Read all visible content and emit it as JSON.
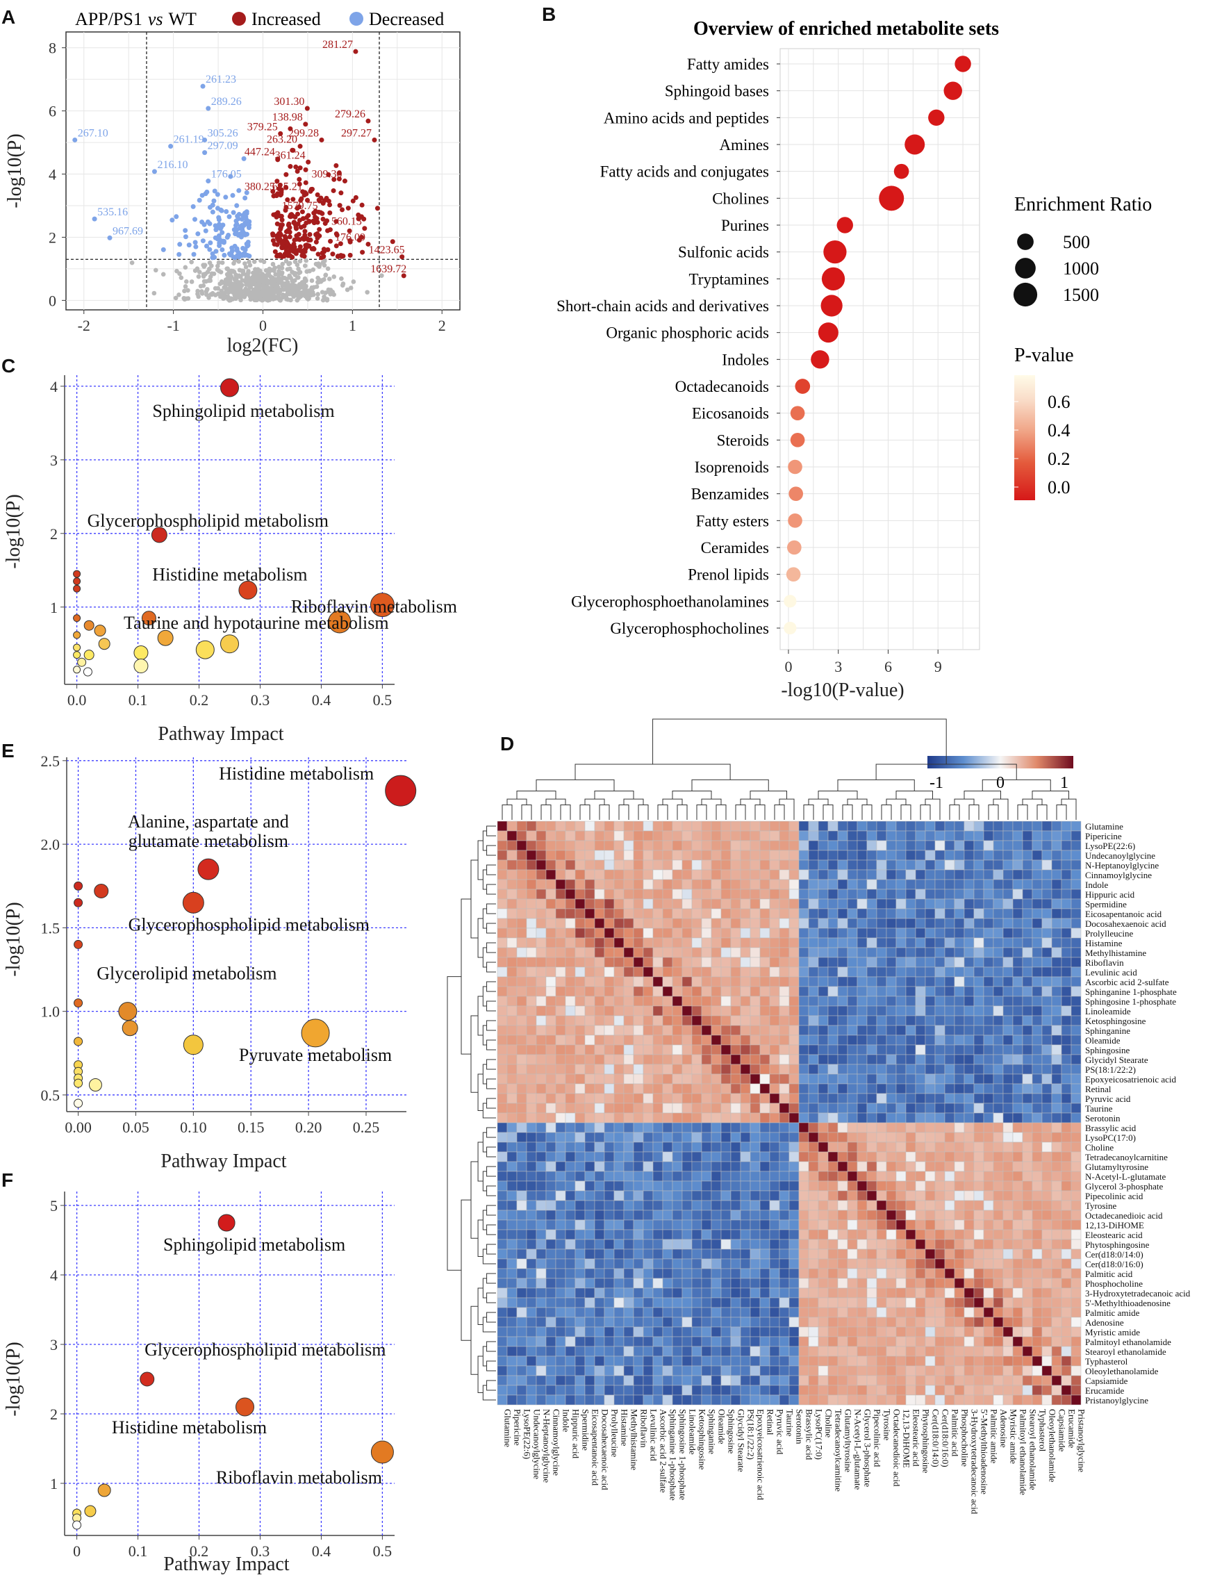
{
  "panels": {
    "a": "A",
    "b": "B",
    "c": "C",
    "d": "D",
    "e": "E",
    "f": "F"
  },
  "colors": {
    "increased": "#a51c1c",
    "decreased": "#7ea4e8",
    "ns": "#b8b8b8",
    "grid": "#3c3cff"
  },
  "volcano": {
    "title_main": "APP/PS1",
    "title_vs": "vs",
    "title_ref": "WT",
    "legend_increased": "Increased",
    "legend_decreased": "Decreased",
    "xlabel": "log2(FC)",
    "ylabel": "-log10(P)",
    "xticks": [
      "-2",
      "-1",
      "0",
      "1",
      "2"
    ],
    "yticks": [
      "0",
      "2",
      "4",
      "6",
      "8"
    ],
    "labels_up": [
      {
        "t": "281.27",
        "x": 1.02,
        "y": 8.1
      },
      {
        "t": "301.30",
        "x": 0.48,
        "y": 6.3
      },
      {
        "t": "279.26",
        "x": 1.16,
        "y": 5.9
      },
      {
        "t": "138.98",
        "x": 0.46,
        "y": 5.8
      },
      {
        "t": "379.25",
        "x": 0.18,
        "y": 5.5
      },
      {
        "t": "299.28",
        "x": 0.64,
        "y": 5.3
      },
      {
        "t": "297.27",
        "x": 1.23,
        "y": 5.3
      },
      {
        "t": "263.20",
        "x": 0.4,
        "y": 5.1
      },
      {
        "t": "447.24",
        "x": 0.15,
        "y": 4.7
      },
      {
        "t": "361.24",
        "x": 0.49,
        "y": 4.6
      },
      {
        "t": "309.30",
        "x": 0.9,
        "y": 4.0
      },
      {
        "t": "380.25",
        "x": 0.15,
        "y": 3.6
      },
      {
        "t": "625.21",
        "x": 0.46,
        "y": 3.6
      },
      {
        "t": "1579.75",
        "x": 0.63,
        "y": 3.0
      },
      {
        "t": "560.13",
        "x": 1.12,
        "y": 2.5
      },
      {
        "t": "176.09",
        "x": 1.16,
        "y": 2.0
      },
      {
        "t": "1423.65",
        "x": 1.6,
        "y": 1.6
      },
      {
        "t": "1639.72",
        "x": 1.62,
        "y": 1.0
      }
    ],
    "labels_down": [
      {
        "t": "261.23",
        "x": -0.64,
        "y": 7.0
      },
      {
        "t": "289.26",
        "x": -0.58,
        "y": 6.3
      },
      {
        "t": "267.10",
        "x": -2.07,
        "y": 5.3
      },
      {
        "t": "305.26",
        "x": -0.62,
        "y": 5.3
      },
      {
        "t": "261.19",
        "x": -1.0,
        "y": 5.1
      },
      {
        "t": "297.09",
        "x": -0.62,
        "y": 4.9
      },
      {
        "t": "216.10",
        "x": -1.18,
        "y": 4.3
      },
      {
        "t": "176.05",
        "x": -0.58,
        "y": 4.0
      },
      {
        "t": "535.16",
        "x": -1.85,
        "y": 2.8
      },
      {
        "t": "967.69",
        "x": -1.68,
        "y": 2.2
      }
    ]
  },
  "chart_data": [
    {
      "type": "scatter",
      "panel": "A",
      "title": "APP/PS1 vs WT",
      "xlabel": "log2(FC)",
      "ylabel": "-log10(P)",
      "xlim": [
        -2.2,
        2.2
      ],
      "ylim": [
        -0.3,
        8.5
      ],
      "thresholds": {
        "log2fc": [
          -1.3,
          1.3
        ],
        "neglog10p": 1.3
      },
      "series": [
        {
          "name": "Increased"
        },
        {
          "name": "Decreased"
        }
      ]
    },
    {
      "type": "scatter",
      "panel": "B",
      "title": "Overview of enriched metabolite sets",
      "xlabel": "-log10(P-value)",
      "xticks": [
        "0",
        "3",
        "6",
        "9"
      ],
      "xlim": [
        -0.5,
        11.5
      ],
      "size_legend_title": "Enrichment Ratio",
      "size_legend": [
        "500",
        "1000",
        "1500"
      ],
      "color_legend_title": "P-value",
      "color_legend": [
        "0.6",
        "0.4",
        "0.2",
        "0.0"
      ],
      "categories": [
        "Fatty amides",
        "Sphingoid bases",
        "Amino acids and peptides",
        "Amines",
        "Fatty acids and conjugates",
        "Cholines",
        "Purines",
        "Sulfonic acids",
        "Tryptamines",
        "Short-chain acids and derivatives",
        "Organic phosphoric acids",
        "Indoles",
        "Octadecanoids",
        "Eicosanoids",
        "Steroids",
        "Isoprenoids",
        "Benzamides",
        "Fatty esters",
        "Ceramides",
        "Prenol lipids",
        "Glycerophosphoethanolamines",
        "Glycerophosphocholines"
      ],
      "values": [
        10.5,
        9.9,
        8.9,
        7.6,
        6.8,
        6.2,
        3.4,
        2.8,
        2.7,
        2.6,
        2.4,
        1.9,
        0.85,
        0.55,
        0.55,
        0.4,
        0.45,
        0.4,
        0.35,
        0.3,
        0.1,
        0.1
      ],
      "enrichment_ratio": [
        400,
        600,
        400,
        800,
        300,
        1500,
        400,
        1200,
        1200,
        1000,
        800,
        600,
        300,
        250,
        250,
        250,
        250,
        250,
        250,
        250,
        150,
        150
      ],
      "p_values": [
        0.0,
        0.0,
        0.0,
        0.0,
        0.0,
        0.0,
        0.0,
        0.0,
        0.0,
        0.0,
        0.0,
        0.01,
        0.14,
        0.28,
        0.28,
        0.4,
        0.35,
        0.4,
        0.45,
        0.5,
        0.79,
        0.79
      ]
    },
    {
      "type": "scatter",
      "panel": "C",
      "xlabel": "Pathway Impact",
      "ylabel": "-log10(P)",
      "xticks": [
        "0.0",
        "0.1",
        "0.2",
        "0.3",
        "0.4",
        "0.5"
      ],
      "yticks": [
        "1",
        "2",
        "3",
        "4"
      ],
      "xlim": [
        -0.02,
        0.52
      ],
      "ylim": [
        -0.05,
        4.15
      ],
      "points": [
        {
          "x": 0.25,
          "y": 3.98,
          "s": 13,
          "c": "#cc1c1c",
          "label": "Sphingolipid metabolism"
        },
        {
          "x": 0.135,
          "y": 1.98,
          "s": 11,
          "c": "#cc2a1f",
          "label": "Glycerophospholipid metabolism"
        },
        {
          "x": 0.28,
          "y": 1.23,
          "s": 13,
          "c": "#d9431e",
          "label": "Histidine metabolism"
        },
        {
          "x": 0.5,
          "y": 1.03,
          "s": 17,
          "c": "#de5a1f",
          "label": "Riboflavin metabolism"
        },
        {
          "x": 0.43,
          "y": 0.8,
          "s": 16,
          "c": "#e27a22",
          "label": "Taurine and hypotaurine metabolism"
        },
        {
          "x": 0.0,
          "y": 1.45,
          "s": 5,
          "c": "#d13b1e"
        },
        {
          "x": 0.0,
          "y": 1.35,
          "s": 5,
          "c": "#d13b1e"
        },
        {
          "x": 0.0,
          "y": 1.25,
          "s": 5,
          "c": "#d13b1e"
        },
        {
          "x": 0.118,
          "y": 0.85,
          "s": 10,
          "c": "#e06a22"
        },
        {
          "x": 0.0,
          "y": 0.85,
          "s": 5,
          "c": "#e06a22"
        },
        {
          "x": 0.02,
          "y": 0.75,
          "s": 7,
          "c": "#e88a2e"
        },
        {
          "x": 0.038,
          "y": 0.68,
          "s": 8,
          "c": "#f0a33a"
        },
        {
          "x": 0.145,
          "y": 0.58,
          "s": 11,
          "c": "#f0a83a"
        },
        {
          "x": 0.0,
          "y": 0.62,
          "s": 5,
          "c": "#f0a83a"
        },
        {
          "x": 0.045,
          "y": 0.5,
          "s": 8,
          "c": "#f6c654"
        },
        {
          "x": 0.25,
          "y": 0.5,
          "s": 13,
          "c": "#f7cc4e"
        },
        {
          "x": 0.21,
          "y": 0.42,
          "s": 13,
          "c": "#fbdf5a"
        },
        {
          "x": 0.105,
          "y": 0.38,
          "s": 10,
          "c": "#fde963"
        },
        {
          "x": 0.0,
          "y": 0.45,
          "s": 5,
          "c": "#fbe26a"
        },
        {
          "x": 0.0,
          "y": 0.35,
          "s": 5,
          "c": "#fde963"
        },
        {
          "x": 0.02,
          "y": 0.35,
          "s": 7,
          "c": "#fde963"
        },
        {
          "x": 0.008,
          "y": 0.25,
          "s": 6,
          "c": "#fff1a0"
        },
        {
          "x": 0.0,
          "y": 0.15,
          "s": 5,
          "c": "#fff9d6"
        },
        {
          "x": 0.018,
          "y": 0.12,
          "s": 6,
          "c": "#ffffff"
        },
        {
          "x": 0.105,
          "y": 0.2,
          "s": 10,
          "c": "#fff6b0"
        }
      ]
    },
    {
      "type": "scatter",
      "panel": "E",
      "xlabel": "Pathway Impact",
      "ylabel": "-log10(P)",
      "xticks": [
        "0.00",
        "0.05",
        "0.10",
        "0.15",
        "0.20",
        "0.25"
      ],
      "yticks": [
        "0.5",
        "1.0",
        "1.5",
        "2.0",
        "2.5"
      ],
      "xlim": [
        -0.01,
        0.285
      ],
      "ylim": [
        0.4,
        2.52
      ],
      "points": [
        {
          "x": 0.28,
          "y": 2.32,
          "s": 22,
          "c": "#cc1c1c",
          "label": "Histidine metabolism"
        },
        {
          "x": 0.113,
          "y": 1.85,
          "s": 15,
          "c": "#d32a1f",
          "label": "Alanine, aspartate and glutamate metabolism"
        },
        {
          "x": 0.1,
          "y": 1.65,
          "s": 15,
          "c": "#d8401f",
          "label": "Glycerophospholipid metabolism"
        },
        {
          "x": 0.043,
          "y": 1.0,
          "s": 13,
          "c": "#e28a2a",
          "label": "Glycerolipid metabolism"
        },
        {
          "x": 0.206,
          "y": 0.87,
          "s": 20,
          "c": "#f0a630",
          "label": "Pyruvate metabolism"
        },
        {
          "x": 0.0,
          "y": 1.75,
          "s": 6,
          "c": "#cc2a1f"
        },
        {
          "x": 0.0,
          "y": 1.65,
          "s": 6,
          "c": "#cc2a1f"
        },
        {
          "x": 0.02,
          "y": 1.72,
          "s": 10,
          "c": "#d33a1f"
        },
        {
          "x": 0.0,
          "y": 1.4,
          "s": 6,
          "c": "#d6431f"
        },
        {
          "x": 0.0,
          "y": 1.05,
          "s": 6,
          "c": "#e06a22"
        },
        {
          "x": 0.045,
          "y": 0.9,
          "s": 11,
          "c": "#e79530"
        },
        {
          "x": 0.1,
          "y": 0.8,
          "s": 14,
          "c": "#f3c63e"
        },
        {
          "x": 0.0,
          "y": 0.82,
          "s": 6,
          "c": "#f2b83a"
        },
        {
          "x": 0.0,
          "y": 0.68,
          "s": 6,
          "c": "#f8d550"
        },
        {
          "x": 0.0,
          "y": 0.64,
          "s": 6,
          "c": "#fbe066"
        },
        {
          "x": 0.0,
          "y": 0.6,
          "s": 6,
          "c": "#fde76e"
        },
        {
          "x": 0.0,
          "y": 0.57,
          "s": 6,
          "c": "#fde76e"
        },
        {
          "x": 0.015,
          "y": 0.56,
          "s": 9,
          "c": "#fef2a0"
        },
        {
          "x": 0.0,
          "y": 0.45,
          "s": 6,
          "c": "#fffbe8"
        }
      ]
    },
    {
      "type": "scatter",
      "panel": "F",
      "xlabel": "Pathway Impact",
      "ylabel": "-log10(P)",
      "xticks": [
        "0",
        "0.1",
        "0.2",
        "0.3",
        "0.4",
        "0.5"
      ],
      "yticks": [
        "1",
        "2",
        "3",
        "4",
        "5"
      ],
      "xlim": [
        -0.02,
        0.52
      ],
      "ylim": [
        0.25,
        5.2
      ],
      "points": [
        {
          "x": 0.245,
          "y": 4.75,
          "s": 12,
          "c": "#d21c1c",
          "label": "Sphingolipid metabolism"
        },
        {
          "x": 0.115,
          "y": 2.5,
          "s": 10,
          "c": "#d22d1f",
          "label": "Glycerophospholipid metabolism"
        },
        {
          "x": 0.275,
          "y": 2.1,
          "s": 13,
          "c": "#db541f",
          "label": "Histidine metabolism"
        },
        {
          "x": 0.5,
          "y": 1.45,
          "s": 16,
          "c": "#e27a22",
          "label": "Riboflavin metabolism"
        },
        {
          "x": 0.045,
          "y": 0.9,
          "s": 9,
          "c": "#eea638"
        },
        {
          "x": 0.022,
          "y": 0.6,
          "s": 8,
          "c": "#f6cc4a"
        },
        {
          "x": 0.0,
          "y": 0.57,
          "s": 6,
          "c": "#fbe05a"
        },
        {
          "x": 0.0,
          "y": 0.5,
          "s": 6,
          "c": "#fff0a0"
        },
        {
          "x": 0.0,
          "y": 0.4,
          "s": 6,
          "c": "#ffffff"
        }
      ]
    },
    {
      "type": "heatmap",
      "panel": "D",
      "colorbar_ticks": [
        "-1",
        "0",
        "1"
      ],
      "row_labels": [
        "Glutamine",
        "Pipericine",
        "LysoPE(22:6)",
        "Undecanoylglycine",
        "N-Heptanoylglycine",
        "Cinnamoylglycine",
        "Indole",
        "Hippuric acid",
        "Spermidine",
        "Eicosapentanoic acid",
        "Docosahexaenoic acid",
        "Prolylleucine",
        "Histamine",
        "Methylhistamine",
        "Riboflavin",
        "Levulinic acid",
        "Ascorbic acid 2-sulfate",
        "Sphinganine 1-phosphate",
        "Sphingosine 1-phosphate",
        "Linoleamide",
        "Ketosphingosine",
        "Sphinganine",
        "Oleamide",
        "Sphingosine",
        "Glycidyl Stearate",
        "PS(18:1/22:2)",
        "Epoxyeicosatrienoic acid",
        "Retinal",
        "Pyruvic acid",
        "Taurine",
        "Serotonin",
        "Brassylic acid",
        "LysoPC(17:0)",
        "Choline",
        "Tetradecanoylcarnitine",
        "Glutamyltyrosine",
        "N-Acetyl-L-glutamate",
        "Glycerol 3-phosphate",
        "Pipecolinic acid",
        "Tyrosine",
        "Octadecanedioic acid",
        "12,13-DiHOME",
        "Eleostearic acid",
        "Phytosphingosine",
        "Cer(d18:0/14:0)",
        "Cer(d18:0/16:0)",
        "Palmitic acid",
        "Phosphocholine",
        "3-Hydroxytetradecanoic acid",
        "5'-Methylthioadenosine",
        "Palmitic amide",
        "Adenosine",
        "Myristic amide",
        "Palmitoyl ethanolamide",
        "Stearoyl ethanolamide",
        "Typhasterol",
        "Oleoylethanolamide",
        "Capsiamide",
        "Erucamide",
        "Pristanoylglycine"
      ],
      "col_labels": [
        "Glutamine",
        "Pipericine",
        "LysoPE(22:6)",
        "Undecanoylglycine",
        "N-Heptanoylglycine",
        "Cinnamoylglycine",
        "Indole",
        "Hippuric acid",
        "Spermidine",
        "Eicosapentanoic acid",
        "Docosahexaenoic acid",
        "Prolylleucine",
        "Histamine",
        "Methylhistamine",
        "Riboflavin",
        "Levulinic acid",
        "Ascorbic acid 2-sulfate",
        "Sphinganine 1-phosphate",
        "Sphingosine 1-phosphate",
        "Linoleamide",
        "Ketosphingosine",
        "Sphinganine",
        "Oleamide",
        "Sphingosine",
        "Glycidyl Stearate",
        "PS(18:1/22:2)",
        "Epoxyeicosatrienoic acid",
        "Retinal",
        "Pyruvic acid",
        "Taurine",
        "Serotonin",
        "Brassylic acid",
        "LysoPC(17:0)",
        "Choline",
        "Tetradecanoylcarnitine",
        "Glutamyltyrosine",
        "N-Acetyl-L-glutamate",
        "Glycerol 3-phosphate",
        "Pipecolinic acid",
        "Tyrosine",
        "Octadecanedioic acid",
        "12,13-DiHOME",
        "Eleostearic acid",
        "Phytosphingosine",
        "Cer(d18:0/14:0)",
        "Cer(d18:0/16:0)",
        "Palmitic acid",
        "Phosphocholine",
        "3-Hydroxytetradecanoic acid",
        "5'-Methylthioadenosine",
        "Palmitic amide",
        "Adenosine",
        "Myristic amide",
        "Palmitoyl ethanolamide",
        "Stearoyl ethanolamide",
        "Typhasterol",
        "Oleoylethanolamide",
        "Capsiamide",
        "Erucamide",
        "Pristanoylglycine"
      ],
      "cluster_split": 31
    }
  ]
}
